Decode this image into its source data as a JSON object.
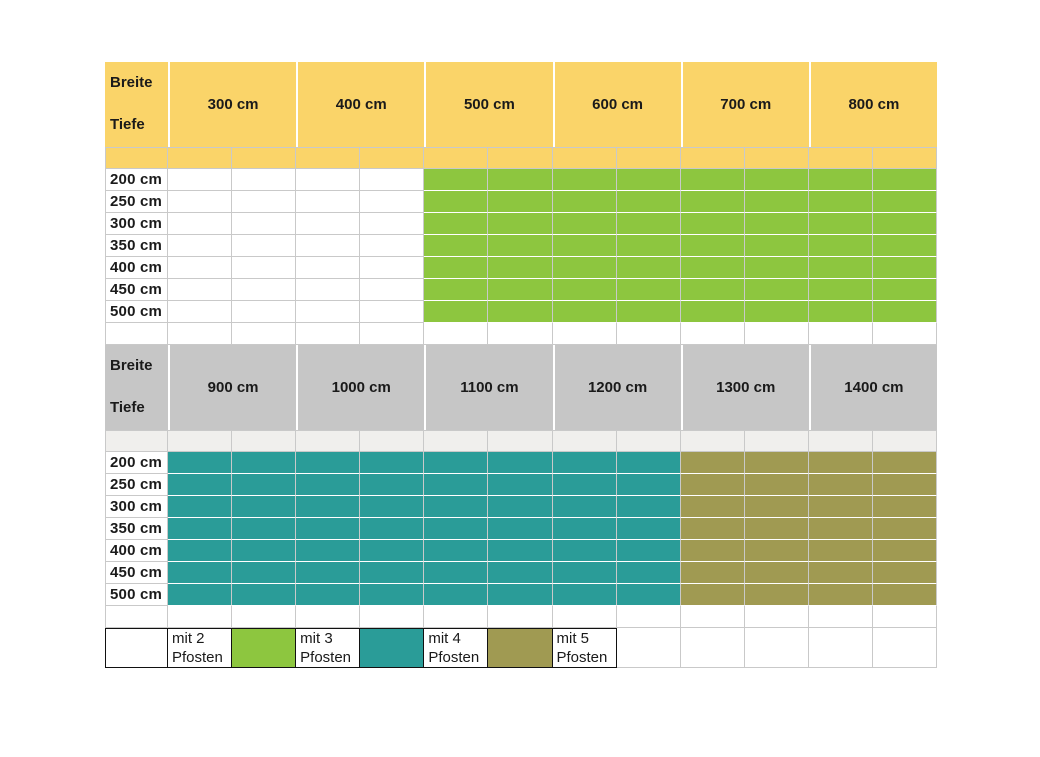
{
  "colors": {
    "yellow": "#FAD469",
    "green": "#8DC63F",
    "teal": "#2A9C98",
    "olive": "#A09A52",
    "gray": "#C6C6C6",
    "light": "#F0EFED",
    "white": "#FFFFFF",
    "grid": "#C9C9C9",
    "legend_border": "#111111",
    "text": "#1A1A1A"
  },
  "tables": [
    {
      "corner_top": "Breite",
      "corner_bottom": "Tiefe",
      "header_color": "yellow",
      "subheader_color": "yellow",
      "columns": [
        "300 cm",
        "400 cm",
        "500 cm",
        "600 cm",
        "700 cm",
        "800 cm"
      ],
      "rows": [
        "200 cm",
        "250 cm",
        "300 cm",
        "350 cm",
        "400 cm",
        "450 cm",
        "500 cm"
      ],
      "column_fill": [
        "white",
        "white",
        "green",
        "green",
        "green",
        "green"
      ]
    },
    {
      "corner_top": "Breite",
      "corner_bottom": "Tiefe",
      "header_color": "gray",
      "subheader_color": "light",
      "columns": [
        "900 cm",
        "1000 cm",
        "1100 cm",
        "1200 cm",
        "1300 cm",
        "1400 cm"
      ],
      "rows": [
        "200 cm",
        "250 cm",
        "300 cm",
        "350 cm",
        "400 cm",
        "450 cm",
        "500 cm"
      ],
      "column_fill": [
        "teal",
        "teal",
        "teal",
        "teal",
        "olive",
        "olive"
      ]
    }
  ],
  "legend": [
    {
      "swatch": "white",
      "label": "mit 2\nPfosten"
    },
    {
      "swatch": "green",
      "label": "mit 3\nPfosten"
    },
    {
      "swatch": "teal",
      "label": "mit 4\nPfosten"
    },
    {
      "swatch": "olive",
      "label": "mit 5\nPfosten"
    }
  ],
  "chart_data": {
    "type": "heatmap",
    "title": "",
    "x_axis_label": "Breite",
    "y_axis_label": "Tiefe",
    "columns_breite_cm": [
      300,
      400,
      500,
      600,
      700,
      800,
      900,
      1000,
      1100,
      1200,
      1300,
      1400
    ],
    "rows_tiefe_cm": [
      200,
      250,
      300,
      350,
      400,
      450,
      500
    ],
    "values_pfosten_per_row": [
      [
        2,
        2,
        3,
        3,
        3,
        3,
        4,
        4,
        4,
        4,
        5,
        5
      ],
      [
        2,
        2,
        3,
        3,
        3,
        3,
        4,
        4,
        4,
        4,
        5,
        5
      ],
      [
        2,
        2,
        3,
        3,
        3,
        3,
        4,
        4,
        4,
        4,
        5,
        5
      ],
      [
        2,
        2,
        3,
        3,
        3,
        3,
        4,
        4,
        4,
        4,
        5,
        5
      ],
      [
        2,
        2,
        3,
        3,
        3,
        3,
        4,
        4,
        4,
        4,
        5,
        5
      ],
      [
        2,
        2,
        3,
        3,
        3,
        3,
        4,
        4,
        4,
        4,
        5,
        5
      ],
      [
        2,
        2,
        3,
        3,
        3,
        3,
        4,
        4,
        4,
        4,
        5,
        5
      ]
    ],
    "legend_entries": [
      "mit 2 Pfosten",
      "mit 3 Pfosten",
      "mit 4 Pfosten",
      "mit 5 Pfosten"
    ],
    "color_mapping": {
      "mit 2 Pfosten": "#FFFFFF",
      "mit 3 Pfosten": "#8DC63F",
      "mit 4 Pfosten": "#2A9C98",
      "mit 5 Pfosten": "#A09A52"
    },
    "layout_hints": {
      "grid": true,
      "split_into_two_tables": [
        [
          300,
          800
        ],
        [
          900,
          1400
        ]
      ],
      "legend_position": "bottom"
    }
  }
}
